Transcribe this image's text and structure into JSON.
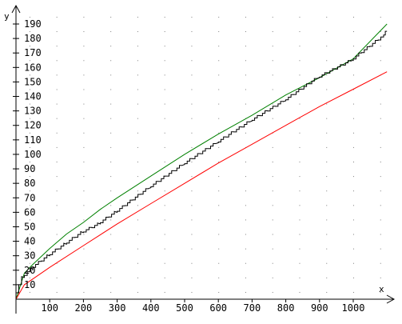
{
  "chart_data": {
    "type": "line",
    "xlabel": "x",
    "ylabel": "y",
    "xlim": [
      0,
      1150
    ],
    "ylim": [
      -8,
      200
    ],
    "x_ticks": [
      100,
      200,
      300,
      400,
      500,
      600,
      700,
      800,
      900,
      1000
    ],
    "y_ticks": [
      10,
      20,
      30,
      40,
      50,
      60,
      70,
      80,
      90,
      100,
      110,
      120,
      130,
      140,
      150,
      160,
      170,
      180,
      190
    ],
    "grid": "dotted",
    "legend": "none",
    "series": [
      {
        "color": "#008000",
        "style": "smooth",
        "x": [
          0,
          25,
          50,
          100,
          150,
          200,
          250,
          300,
          400,
          500,
          600,
          700,
          800,
          900,
          1000,
          1100
        ],
        "y": [
          0,
          18,
          24,
          35,
          45,
          53,
          62,
          70,
          85,
          100,
          114,
          127,
          141,
          153,
          166,
          190
        ]
      },
      {
        "color": "#000000",
        "style": "step",
        "x": [
          0,
          25,
          50,
          100,
          150,
          200,
          250,
          300,
          400,
          500,
          600,
          700,
          800,
          900,
          1000,
          1090,
          1100
        ],
        "y": [
          0,
          15,
          21,
          30,
          38,
          46,
          52,
          60,
          77,
          93,
          108,
          123,
          137,
          153,
          165,
          181,
          185
        ]
      },
      {
        "color": "#ff0000",
        "style": "smooth",
        "x": [
          0,
          25,
          50,
          100,
          200,
          300,
          400,
          500,
          600,
          700,
          800,
          900,
          1000,
          1100
        ],
        "y": [
          0,
          10,
          14,
          22,
          37,
          52,
          66,
          80,
          94,
          107,
          120,
          133,
          145,
          157
        ]
      }
    ],
    "colors": {
      "axis": "#000000",
      "grid": "#808080",
      "background": "#ffffff"
    }
  }
}
